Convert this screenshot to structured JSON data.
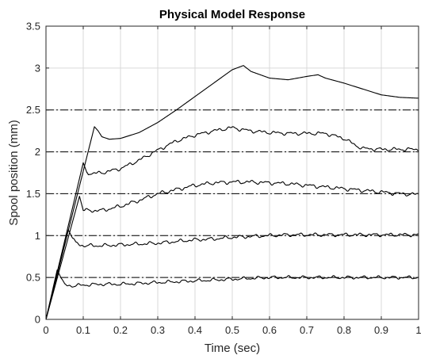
{
  "chart_data": {
    "type": "line",
    "title": "Physical Model Response",
    "xlabel": "Time (sec)",
    "ylabel": "Spool position (mm)",
    "xlim": [
      0,
      1
    ],
    "ylim": [
      0,
      3.5
    ],
    "xticks": [
      0,
      0.1,
      0.2,
      0.3,
      0.4,
      0.5,
      0.6,
      0.7,
      0.8,
      0.9,
      1
    ],
    "xtick_labels": [
      "0",
      "0.1",
      "0.2",
      "0.3",
      "0.4",
      "0.5",
      "0.6",
      "0.7",
      "0.8",
      "0.9",
      "1"
    ],
    "yticks": [
      0,
      0.5,
      1,
      1.5,
      2,
      2.5,
      3,
      3.5
    ],
    "ytick_labels": [
      "0",
      "0.5",
      "1",
      "1.5",
      "2",
      "2.5",
      "3",
      "3.5"
    ],
    "grid": true,
    "line_color": "#000000",
    "reference_lines": [
      {
        "y": 0.5,
        "style": "dash-dot"
      },
      {
        "y": 1.0,
        "style": "dash-dot"
      },
      {
        "y": 1.5,
        "style": "dash-dot"
      },
      {
        "y": 2.0,
        "style": "dash-dot"
      },
      {
        "y": 2.5,
        "style": "dash-dot"
      }
    ],
    "series": [
      {
        "x": [
          0,
          0.03,
          0.04,
          0.05,
          0.07,
          0.1,
          0.15,
          0.2,
          0.25,
          0.3,
          0.35,
          0.4,
          0.45,
          0.5,
          0.55,
          0.6,
          0.65,
          0.7,
          0.75,
          0.8,
          0.85,
          0.9,
          0.95,
          1.0
        ],
        "y": [
          0,
          0.59,
          0.5,
          0.41,
          0.4,
          0.41,
          0.42,
          0.42,
          0.43,
          0.44,
          0.45,
          0.46,
          0.47,
          0.48,
          0.49,
          0.5,
          0.5,
          0.5,
          0.5,
          0.5,
          0.5,
          0.5,
          0.5,
          0.5
        ],
        "noise": 0.012
      },
      {
        "x": [
          0,
          0.06,
          0.07,
          0.08,
          0.1,
          0.15,
          0.2,
          0.25,
          0.3,
          0.35,
          0.4,
          0.45,
          0.5,
          0.55,
          0.6,
          0.65,
          0.7,
          0.75,
          0.8,
          0.85,
          0.9,
          0.95,
          1.0
        ],
        "y": [
          0,
          1.07,
          0.98,
          0.91,
          0.88,
          0.88,
          0.89,
          0.9,
          0.91,
          0.93,
          0.95,
          0.96,
          0.98,
          0.99,
          1.0,
          1.01,
          1.01,
          1.01,
          1.01,
          1.01,
          1.01,
          1.01,
          1.01
        ],
        "noise": 0.013
      },
      {
        "x": [
          0,
          0.09,
          0.1,
          0.12,
          0.15,
          0.2,
          0.25,
          0.3,
          0.35,
          0.4,
          0.45,
          0.5,
          0.55,
          0.6,
          0.65,
          0.7,
          0.75,
          0.8,
          0.85,
          0.9,
          0.95,
          1.0
        ],
        "y": [
          0,
          1.47,
          1.3,
          1.3,
          1.3,
          1.35,
          1.42,
          1.5,
          1.55,
          1.6,
          1.63,
          1.64,
          1.64,
          1.63,
          1.62,
          1.6,
          1.58,
          1.56,
          1.54,
          1.52,
          1.5,
          1.49
        ],
        "noise": 0.014
      },
      {
        "x": [
          0,
          0.1,
          0.11,
          0.12,
          0.15,
          0.2,
          0.25,
          0.3,
          0.35,
          0.4,
          0.45,
          0.5,
          0.52,
          0.55,
          0.6,
          0.65,
          0.7,
          0.75,
          0.8,
          0.83,
          0.85,
          0.9,
          0.95,
          1.0
        ],
        "y": [
          0,
          1.87,
          1.75,
          1.74,
          1.75,
          1.8,
          1.9,
          2.02,
          2.13,
          2.2,
          2.25,
          2.29,
          2.27,
          2.25,
          2.23,
          2.22,
          2.22,
          2.22,
          2.16,
          2.08,
          2.04,
          2.03,
          2.03,
          2.03
        ],
        "noise": 0.013
      },
      {
        "x": [
          0,
          0.13,
          0.14,
          0.15,
          0.17,
          0.2,
          0.25,
          0.3,
          0.35,
          0.4,
          0.45,
          0.5,
          0.53,
          0.55,
          0.6,
          0.65,
          0.7,
          0.73,
          0.75,
          0.8,
          0.85,
          0.9,
          0.95,
          1.0
        ],
        "y": [
          0,
          2.3,
          2.25,
          2.18,
          2.15,
          2.16,
          2.23,
          2.35,
          2.5,
          2.66,
          2.82,
          2.98,
          3.03,
          2.96,
          2.88,
          2.86,
          2.9,
          2.92,
          2.88,
          2.82,
          2.75,
          2.68,
          2.65,
          2.64
        ],
        "noise": 0.0
      }
    ]
  }
}
